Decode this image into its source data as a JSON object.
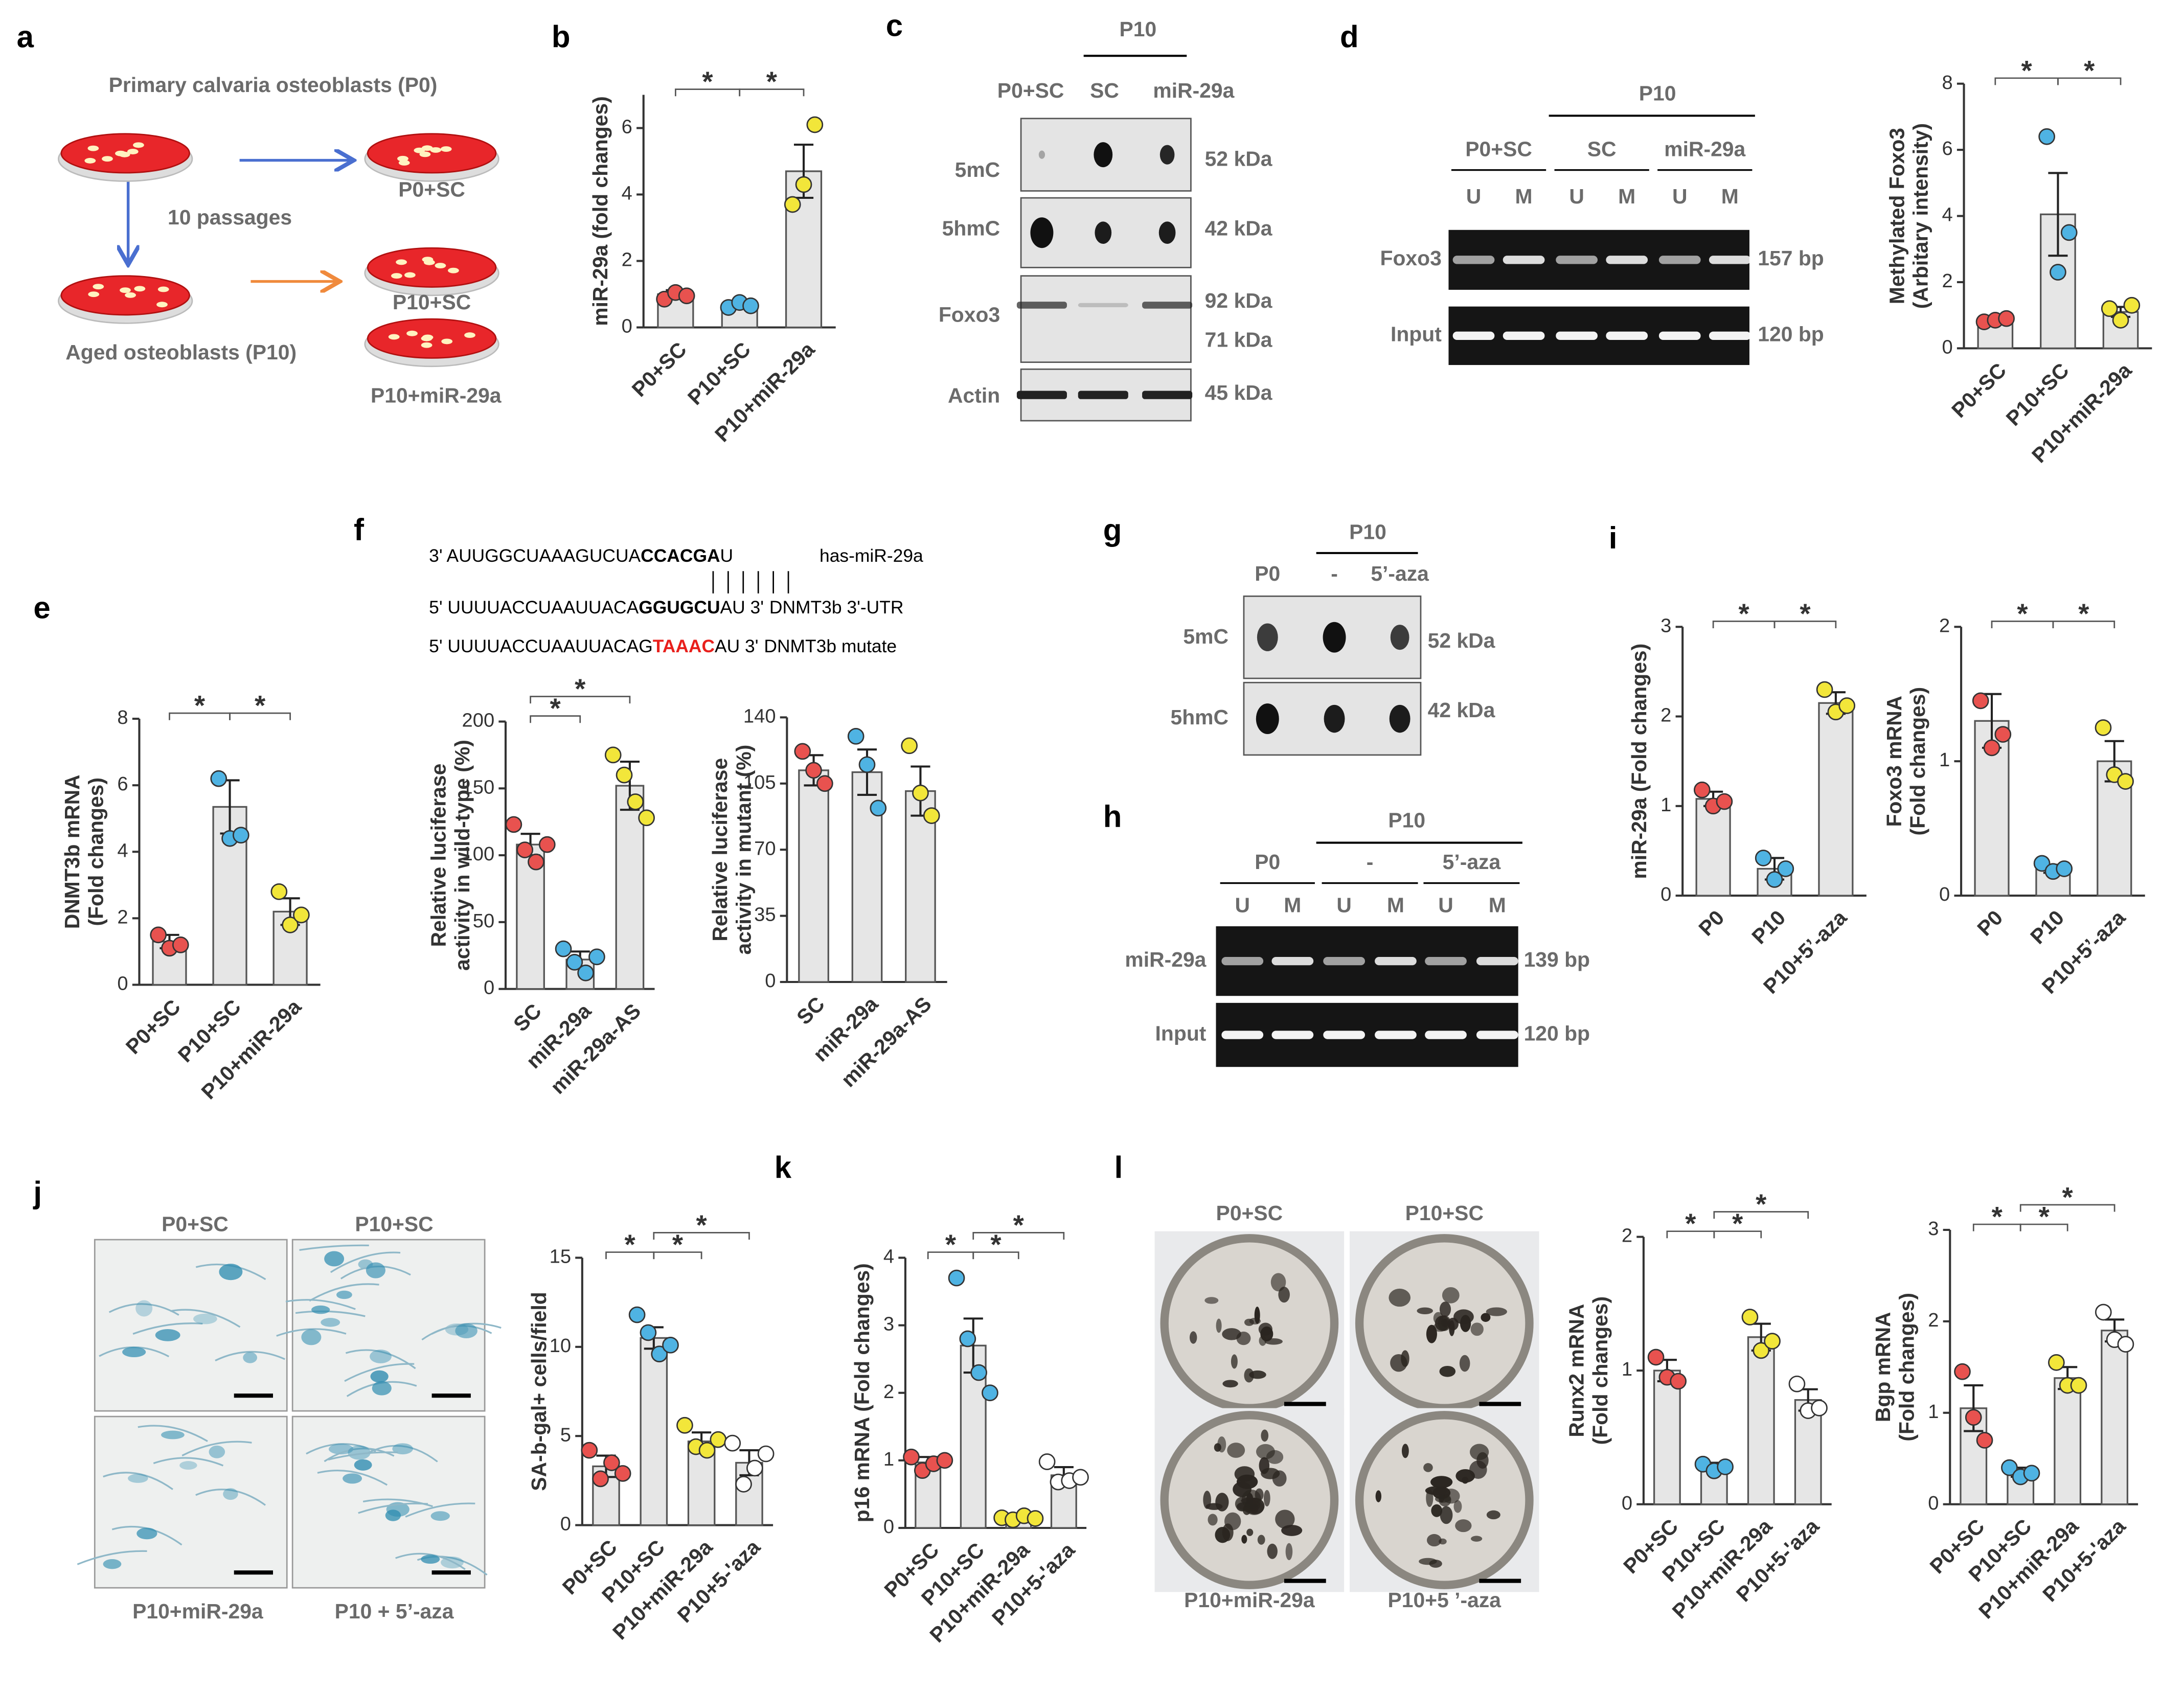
{
  "panel_labels": [
    "a",
    "b",
    "c",
    "d",
    "e",
    "f",
    "g",
    "h",
    "i",
    "j",
    "k",
    "l"
  ],
  "panel_a": {
    "title": "Primary calvaria osteoblasts (P0)",
    "step": "10 passages",
    "aged": "Aged osteoblasts (P10)",
    "groups": [
      "P0+SC",
      "P10+SC",
      "P10+miR-29a"
    ]
  },
  "panel_c": {
    "header": "P10",
    "lanes": [
      "P0+SC",
      "SC",
      "miR-29a"
    ],
    "rows": [
      "5mC",
      "5hmC",
      "Foxo3",
      "Actin"
    ],
    "sizes": [
      "52 kDa",
      "42 kDa",
      "92 kDa",
      "71 kDa",
      "45 kDa"
    ]
  },
  "panel_d": {
    "header": "P10",
    "groups": [
      "P0+SC",
      "SC",
      "miR-29a"
    ],
    "lanes": [
      "U",
      "M",
      "U",
      "M",
      "U",
      "M"
    ],
    "rows": [
      "Foxo3",
      "Input"
    ],
    "sizes": [
      "157 bp",
      "120 bp"
    ]
  },
  "panel_f": {
    "sequences": [
      {
        "parts": [
          "3' AUUGGCUAAAGUCUA",
          "CCACGA",
          "U"
        ],
        "label": "has-miR-29a"
      },
      {
        "parts": [
          "5' UUUUACCUAAUUACA",
          "GGUGCU",
          "AU 3'"
        ],
        "label": "DNMT3b 3'-UTR"
      },
      {
        "parts": [
          "5' UUUUACCUAAUUACAG",
          "TAAAC",
          "AU 3'"
        ],
        "label": "DNMT3b mutate",
        "highlight": "#e8201c"
      }
    ]
  },
  "panel_g": {
    "header": "P10",
    "lanes": [
      "P0",
      "-",
      "5’-aza"
    ],
    "rows": [
      "5mC",
      "5hmC"
    ],
    "sizes": [
      "52 kDa",
      "42 kDa"
    ]
  },
  "panel_h": {
    "header": "P10",
    "groups": [
      "P0",
      "-",
      "5’-aza"
    ],
    "lanes": [
      "U",
      "M",
      "U",
      "M",
      "U",
      "M"
    ],
    "rows": [
      "miR-29a",
      "Input"
    ],
    "sizes": [
      "139 bp",
      "120 bp"
    ]
  },
  "panel_j": {
    "images": [
      "P0+SC",
      "P10+SC",
      "P10+miR-29a",
      "P10 + 5’-aza"
    ]
  },
  "panel_l": {
    "images": [
      "P0+SC",
      "P10+SC",
      "P10+miR-29a",
      "P10+5 ’-aza"
    ]
  },
  "chart_data": [
    {
      "type": "bar",
      "ylabel": [
        "miR-29a (fold changes)"
      ],
      "categories": [
        "P0+SC",
        "P10+SC",
        "P10+miR-29a"
      ],
      "values": [
        1.0,
        0.68,
        4.7
      ],
      "errors": [
        0.12,
        0.08,
        0.8
      ],
      "points": [
        [
          0.85,
          1.05,
          0.95
        ],
        [
          0.6,
          0.75,
          0.65
        ],
        [
          3.7,
          4.3,
          6.1
        ]
      ],
      "point_colors": [
        "#e8524f",
        "#4fb3e3",
        "#f2e63a"
      ],
      "ylim": [
        0,
        7
      ],
      "yticks": [
        0,
        2,
        4,
        6
      ],
      "significance": [
        {
          "from": "P0+SC",
          "to": "P10+SC",
          "label": "*"
        },
        {
          "from": "P10+SC",
          "to": "P10+miR-29a",
          "label": "*"
        }
      ]
    },
    {
      "type": "bar",
      "ylabel": [
        "Methylated Foxo3",
        "(Arbitary intensity)"
      ],
      "categories": [
        "P0+SC",
        "P10+SC",
        "P10+miR-29a"
      ],
      "values": [
        0.85,
        4.05,
        1.1
      ],
      "errors": [
        0.1,
        1.25,
        0.15
      ],
      "points": [
        [
          0.8,
          0.85,
          0.9
        ],
        [
          6.4,
          2.3,
          3.5
        ],
        [
          1.2,
          0.85,
          1.3
        ]
      ],
      "point_colors": [
        "#e8524f",
        "#4fb3e3",
        "#f2e63a"
      ],
      "ylim": [
        0,
        8
      ],
      "yticks": [
        0,
        2,
        4,
        6,
        8
      ],
      "significance": [
        {
          "from": "P0+SC",
          "to": "P10+SC",
          "label": "*"
        },
        {
          "from": "P10+SC",
          "to": "P10+miR-29a",
          "label": "*"
        }
      ]
    },
    {
      "type": "bar",
      "ylabel": [
        "DNMT3b mRNA",
        "(Fold changes)"
      ],
      "categories": [
        "P0+SC",
        "P10+SC",
        "P10+miR-29a"
      ],
      "values": [
        1.3,
        5.35,
        2.2
      ],
      "errors": [
        0.2,
        0.8,
        0.4
      ],
      "points": [
        [
          1.5,
          1.1,
          1.2
        ],
        [
          6.2,
          4.4,
          4.5
        ],
        [
          2.8,
          1.8,
          2.1
        ]
      ],
      "point_colors": [
        "#e8524f",
        "#4fb3e3",
        "#f2e63a"
      ],
      "ylim": [
        0,
        8
      ],
      "yticks": [
        0,
        2,
        4,
        6,
        8
      ],
      "significance": [
        {
          "from": "P0+SC",
          "to": "P10+SC",
          "label": "*"
        },
        {
          "from": "P10+SC",
          "to": "P10+miR-29a",
          "label": "*"
        }
      ]
    },
    {
      "type": "bar",
      "ylabel": [
        "Relative luciferase",
        "activity in wild-type (%)"
      ],
      "categories": [
        "SC",
        "miR-29a",
        "miR-29a-AS"
      ],
      "values": [
        108,
        22,
        152
      ],
      "errors": [
        8,
        6,
        18
      ],
      "points": [
        [
          123,
          104,
          95,
          108
        ],
        [
          30,
          20,
          12,
          24
        ],
        [
          175,
          160,
          140,
          128
        ]
      ],
      "point_colors": [
        "#e8524f",
        "#4fb3e3",
        "#f2e63a"
      ],
      "ylim": [
        0,
        200
      ],
      "yticks": [
        0,
        50,
        100,
        150,
        200
      ],
      "significance": [
        {
          "from": "SC",
          "to": "miR-29a",
          "label": "*"
        },
        {
          "from": "SC",
          "to": "miR-29a-AS",
          "label": "*"
        }
      ]
    },
    {
      "type": "bar",
      "ylabel": [
        "Relative luciferase",
        "activity in mutant (%)"
      ],
      "categories": [
        "SC",
        "miR-29a",
        "miR-29a-AS"
      ],
      "values": [
        112,
        111,
        101
      ],
      "errors": [
        8,
        12,
        13
      ],
      "points": [
        [
          122,
          112,
          105
        ],
        [
          130,
          115,
          92
        ],
        [
          125,
          100,
          88
        ]
      ],
      "point_colors": [
        "#e8524f",
        "#4fb3e3",
        "#f2e63a"
      ],
      "ylim": [
        0,
        140
      ],
      "yticks": [
        0,
        35,
        70,
        105,
        140
      ],
      "significance": []
    },
    {
      "type": "bar",
      "ylabel": [
        "miR-29a (Fold changes)"
      ],
      "categories": [
        "P0",
        "P10",
        "P10+5’-aza"
      ],
      "values": [
        1.08,
        0.3,
        2.15
      ],
      "errors": [
        0.08,
        0.12,
        0.12
      ],
      "points": [
        [
          1.18,
          1.0,
          1.05
        ],
        [
          0.42,
          0.18,
          0.3
        ],
        [
          2.3,
          2.05,
          2.12
        ]
      ],
      "point_colors": [
        "#e8524f",
        "#4fb3e3",
        "#f2e63a"
      ],
      "ylim": [
        0,
        3
      ],
      "yticks": [
        0,
        1,
        2,
        3
      ],
      "significance": [
        {
          "from": "P0",
          "to": "P10",
          "label": "*"
        },
        {
          "from": "P10",
          "to": "P10+5’-aza",
          "label": "*"
        }
      ]
    },
    {
      "type": "bar",
      "ylabel": [
        "Foxo3 mRNA",
        "(Fold changes)"
      ],
      "categories": [
        "P0",
        "P10",
        "P10+5’-aza"
      ],
      "values": [
        1.3,
        0.2,
        1.0
      ],
      "errors": [
        0.2,
        0.03,
        0.15
      ],
      "points": [
        [
          1.45,
          1.1,
          1.2
        ],
        [
          0.24,
          0.18,
          0.2
        ],
        [
          1.25,
          0.9,
          0.85
        ]
      ],
      "point_colors": [
        "#e8524f",
        "#4fb3e3",
        "#f2e63a"
      ],
      "ylim": [
        0,
        2
      ],
      "yticks": [
        0,
        1,
        2
      ],
      "significance": [
        {
          "from": "P0",
          "to": "P10",
          "label": "*"
        },
        {
          "from": "P10",
          "to": "P10+5’-aza",
          "label": "*"
        }
      ]
    },
    {
      "type": "bar",
      "ylabel": [
        "SA-b-gal+ cells/field"
      ],
      "categories": [
        "P0+SC",
        "P10+SC",
        "P10+miR-29a",
        "P10+5-'aza"
      ],
      "values": [
        3.3,
        10.5,
        4.7,
        3.5
      ],
      "errors": [
        0.6,
        0.6,
        0.5,
        0.7
      ],
      "points": [
        [
          4.2,
          2.6,
          3.5,
          2.9
        ],
        [
          11.8,
          10.8,
          9.6,
          10.1
        ],
        [
          5.6,
          4.4,
          4.2,
          4.8
        ],
        [
          4.6,
          2.3,
          3.2,
          4.0
        ]
      ],
      "point_colors": [
        "#e8524f",
        "#4fb3e3",
        "#f2e63a",
        "#ffffff"
      ],
      "ylim": [
        0,
        15
      ],
      "yticks": [
        0,
        5,
        10,
        15
      ],
      "significance": [
        {
          "from": "P0+SC",
          "to": "P10+SC",
          "label": "*"
        },
        {
          "from": "P10+SC",
          "to": "P10+miR-29a",
          "label": "*"
        },
        {
          "from": "P10+SC",
          "to": "P10+5-'aza",
          "label": "*"
        }
      ]
    },
    {
      "type": "bar",
      "ylabel": [
        "p16 mRNA (Fold changes)"
      ],
      "categories": [
        "P0+SC",
        "P10+SC",
        "P10+miR-29a",
        "P10+5-'aza"
      ],
      "values": [
        0.97,
        2.7,
        0.15,
        0.78
      ],
      "errors": [
        0.08,
        0.4,
        0.03,
        0.12
      ],
      "points": [
        [
          1.05,
          0.85,
          0.95,
          1.0
        ],
        [
          3.7,
          2.8,
          2.3,
          2.0
        ],
        [
          0.15,
          0.12,
          0.18,
          0.14
        ],
        [
          0.98,
          0.68,
          0.7,
          0.75
        ]
      ],
      "point_colors": [
        "#e8524f",
        "#4fb3e3",
        "#f2e63a",
        "#ffffff"
      ],
      "ylim": [
        0,
        4
      ],
      "yticks": [
        0,
        1,
        2,
        3,
        4
      ],
      "significance": [
        {
          "from": "P0+SC",
          "to": "P10+SC",
          "label": "*"
        },
        {
          "from": "P10+SC",
          "to": "P10+miR-29a",
          "label": "*"
        },
        {
          "from": "P10+SC",
          "to": "P10+5-'aza",
          "label": "*"
        }
      ]
    },
    {
      "type": "bar",
      "ylabel": [
        "Runx2 mRNA",
        "(Fold changes)"
      ],
      "categories": [
        "P0+SC",
        "P10+SC",
        "P10+miR-29a",
        "P10+5-'aza"
      ],
      "values": [
        1.0,
        0.28,
        1.25,
        0.78
      ],
      "errors": [
        0.08,
        0.03,
        0.1,
        0.08
      ],
      "points": [
        [
          1.1,
          0.95,
          0.92
        ],
        [
          0.3,
          0.25,
          0.28
        ],
        [
          1.4,
          1.15,
          1.22
        ],
        [
          0.9,
          0.7,
          0.72
        ]
      ],
      "point_colors": [
        "#e8524f",
        "#4fb3e3",
        "#f2e63a",
        "#ffffff"
      ],
      "ylim": [
        0,
        2
      ],
      "yticks": [
        0,
        1,
        2
      ],
      "significance": [
        {
          "from": "P0+SC",
          "to": "P10+SC",
          "label": "*"
        },
        {
          "from": "P10+SC",
          "to": "P10+miR-29a",
          "label": "*"
        },
        {
          "from": "P10+SC",
          "to": "P10+5-'aza",
          "label": "*"
        }
      ]
    },
    {
      "type": "bar",
      "ylabel": [
        "Bgp mRNA",
        "(Fold changes)"
      ],
      "categories": [
        "P0+SC",
        "P10+SC",
        "P10+miR-29a",
        "P10+5-'aza"
      ],
      "values": [
        1.05,
        0.35,
        1.38,
        1.9
      ],
      "errors": [
        0.25,
        0.05,
        0.12,
        0.12
      ],
      "points": [
        [
          1.45,
          0.95,
          0.7
        ],
        [
          0.4,
          0.3,
          0.34
        ],
        [
          1.55,
          1.3,
          1.3
        ],
        [
          2.1,
          1.8,
          1.75
        ]
      ],
      "point_colors": [
        "#e8524f",
        "#4fb3e3",
        "#f2e63a",
        "#ffffff"
      ],
      "ylim": [
        0,
        3
      ],
      "yticks": [
        0,
        1,
        2,
        3
      ],
      "significance": [
        {
          "from": "P0+SC",
          "to": "P10+SC",
          "label": "*"
        },
        {
          "from": "P10+SC",
          "to": "P10+miR-29a",
          "label": "*"
        },
        {
          "from": "P10+SC",
          "to": "P10+5-'aza",
          "label": "*"
        }
      ]
    }
  ]
}
